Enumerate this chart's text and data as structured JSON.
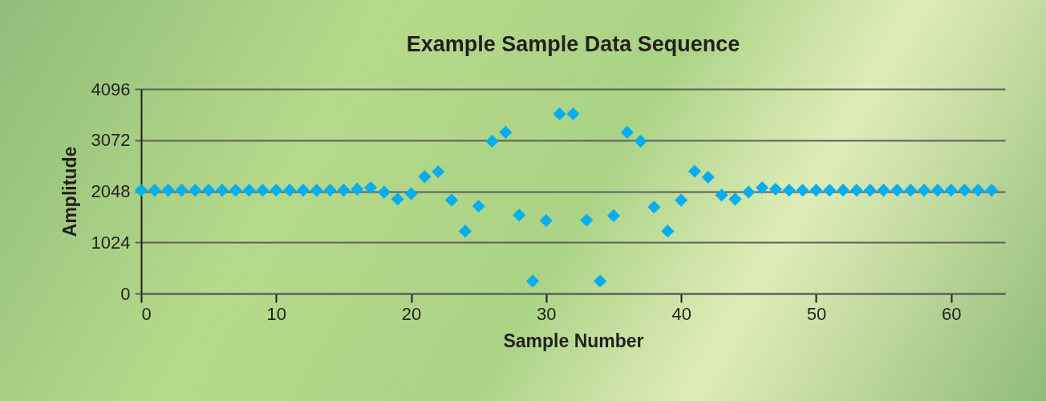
{
  "chart_data": {
    "type": "scatter",
    "title": "Example Sample Data Sequence",
    "xlabel": "Sample Number",
    "ylabel": "Amplitude",
    "x": [
      0,
      1,
      2,
      3,
      4,
      5,
      6,
      7,
      8,
      9,
      10,
      11,
      12,
      13,
      14,
      15,
      16,
      17,
      18,
      19,
      20,
      21,
      22,
      23,
      24,
      25,
      26,
      27,
      28,
      29,
      30,
      31,
      32,
      33,
      34,
      35,
      36,
      37,
      38,
      39,
      40,
      41,
      42,
      43,
      44,
      45,
      46,
      47,
      48,
      49,
      50,
      51,
      52,
      53,
      54,
      55,
      56,
      57,
      58,
      59,
      60,
      61,
      62,
      63
    ],
    "series": [
      {
        "color": "#00aeef",
        "values": [
          2070,
          2070,
          2070,
          2070,
          2070,
          2070,
          2070,
          2070,
          2070,
          2070,
          2070,
          2070,
          2070,
          2070,
          2070,
          2070,
          2090,
          2120,
          2030,
          1890,
          2000,
          2340,
          2440,
          1870,
          1250,
          1750,
          3050,
          3230,
          1570,
          250,
          1460,
          3600,
          3600,
          1470,
          250,
          1560,
          3230,
          3050,
          1730,
          1250,
          1870,
          2450,
          2330,
          1970,
          1890,
          2030,
          2120,
          2090,
          2070,
          2070,
          2070,
          2070,
          2070,
          2070,
          2070,
          2070,
          2070,
          2070,
          2070,
          2070,
          2070,
          2070,
          2070,
          2070
        ]
      }
    ],
    "xlim": [
      0,
      64
    ],
    "xticks": [
      0,
      10,
      20,
      30,
      40,
      50,
      60
    ],
    "ylim": [
      0,
      4096
    ],
    "yticks": [
      0,
      1024,
      2048,
      3072,
      4096
    ],
    "grid": "y",
    "marker": "diamond"
  }
}
